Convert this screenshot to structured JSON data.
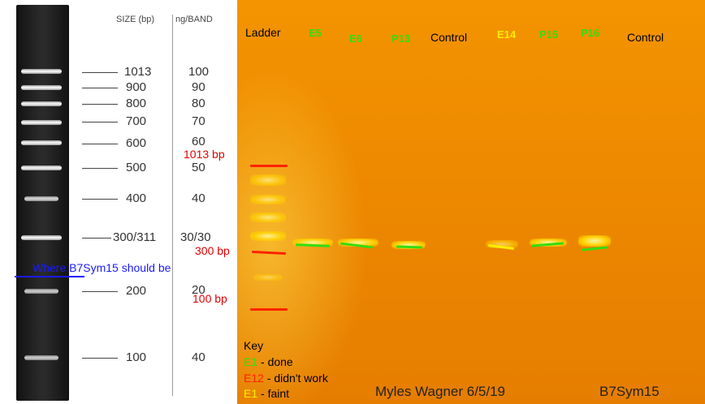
{
  "ladder": {
    "header_size": "SIZE (bp)",
    "header_ng": "ng/BAND",
    "bands": [
      {
        "size": "1013",
        "ng": "100"
      },
      {
        "size": "900",
        "ng": "90"
      },
      {
        "size": "800",
        "ng": "80"
      },
      {
        "size": "700",
        "ng": "70"
      },
      {
        "size": "600",
        "ng": "60"
      },
      {
        "size": "500",
        "ng": "50"
      },
      {
        "size": "400",
        "ng": "40"
      },
      {
        "size": "300/311",
        "ng": "30/30"
      },
      {
        "size": "200",
        "ng": "20"
      },
      {
        "size": "100",
        "ng": "40"
      }
    ]
  },
  "gel": {
    "lanes": [
      {
        "label": "Ladder",
        "color": "#000000"
      },
      {
        "label": "E5",
        "color": "#33dd11"
      },
      {
        "label": "E6",
        "color": "#33dd11"
      },
      {
        "label": "P13",
        "color": "#33dd11"
      },
      {
        "label": "Control",
        "color": "#000000"
      },
      {
        "label": "E14",
        "color": "#ffee00"
      },
      {
        "label": "P15",
        "color": "#33dd11"
      },
      {
        "label": "P16",
        "color": "#33dd11"
      },
      {
        "label": "Control",
        "color": "#000000"
      }
    ],
    "bp_markers": [
      "1013 bp",
      "300 bp",
      "100 bp"
    ],
    "key": {
      "title": "Key",
      "items": [
        {
          "code": "E1",
          "desc": " - done",
          "color": "#33dd11"
        },
        {
          "code": "E12",
          "desc": " - didn't work",
          "color": "#ff2200"
        },
        {
          "code": "E1",
          "desc": " -  faint",
          "color": "#ffee00"
        }
      ]
    },
    "author": "Myles Wagner 6/5/19",
    "sample_name": "B7Sym15"
  },
  "annotation": {
    "text": "Where B7Sym15 should be",
    "color": "#1a1aff"
  },
  "colors": {
    "gel_background": "#f08c00",
    "band_glow": "#ffe040",
    "marker_red": "#ff2200",
    "done_green": "#33dd11",
    "faint_yellow": "#ffee00"
  }
}
